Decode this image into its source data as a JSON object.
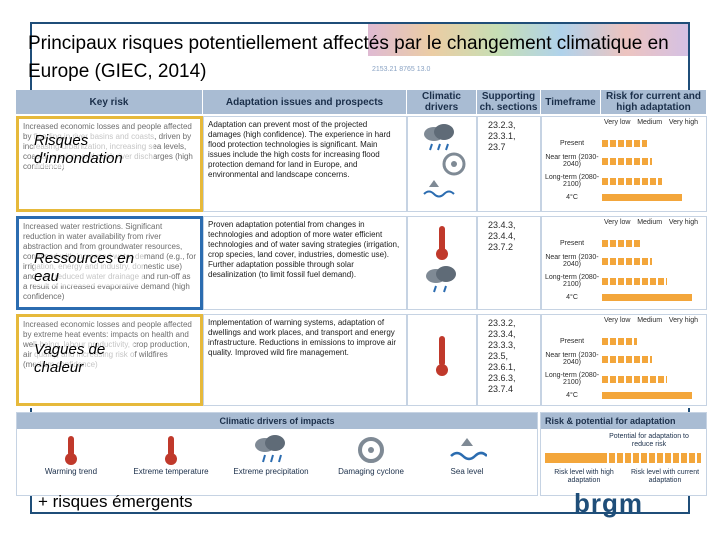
{
  "title": "Principaux risques potentiellement affectés par le changement climatique en Europe (GIEC, 2014)",
  "map_caption": "2153.21 8765 13.0",
  "headers": {
    "key_risk": "Key risk",
    "adaptation": "Adaptation issues and prospects",
    "drivers": "Climatic drivers",
    "sections": "Supporting ch. sections",
    "timeframe": "Timeframe",
    "risk_level": "Risk for current and high adaptation"
  },
  "scale": {
    "low": "Very low",
    "medium": "Medium",
    "high": "Very high"
  },
  "timeframes": {
    "present": "Present",
    "near": "Near term (2030-2040)",
    "long": "Long-term (2080-2100)",
    "deg2": "2°C",
    "deg4": "4°C"
  },
  "rows": [
    {
      "label": "Risques d'innondation",
      "key_risk_text": "Increased economic losses and people affected by flooding in river basins and coasts, driven by increasing urbanization, increasing sea levels, coastal erosion, and peak river discharges (high confidence)",
      "adaptation": "Adaptation can prevent most of the projected damages (high confidence). The experience in hard flood protection technologies is significant. Main issues include the high costs for increasing flood protection demand for land in Europe, and environmental and landscape concerns.",
      "sections": [
        "23.2.3,",
        "23.3.1,",
        "23.7"
      ],
      "drivers": [
        "rain-cloud-icon",
        "cyclone-icon",
        "sea-level-icon"
      ],
      "levels": {
        "present": 0.45,
        "near": 0.5,
        "long2": 0.6,
        "long4": 0.8
      }
    },
    {
      "label": "Ressources en eau",
      "key_risk_text": "Increased water restrictions. Significant reduction in water availability from river abstraction and from groundwater resources, combined with increased water demand (e.g., for irrigation, energy and industry, domestic use) and with reduced water drainage and run-off as a result of increased evaporative demand (high confidence)",
      "adaptation": "Proven adaptation potential from changes in technologies and adoption of more water efficient technologies and of water saving strategies (irrigation, crop species, land cover, industries, domestic use). Further adaptation possible through solar desalinization (to limit fossil fuel demand).",
      "sections": [
        "23.4.3,",
        "23.4.4,",
        "23.7.2"
      ],
      "drivers": [
        "thermometer-icon",
        "drought-icon"
      ],
      "levels": {
        "present": 0.4,
        "near": 0.5,
        "long2": 0.65,
        "long4": 0.9
      }
    },
    {
      "label": "Vagues de chaleur",
      "key_risk_text": "Increased economic losses and people affected by extreme heat events: impacts on health and well-being, labour productivity, crop production, air quality, and increasing risk of wildfires (medium confidence)",
      "adaptation": "Implementation of warning systems, adaptation of dwellings and work places, and transport and energy infrastructure. Reductions in emissions to improve air quality. Improved wild fire management.",
      "sections": [
        "23.3.2,",
        "23.3.4,",
        "23.3.3,",
        "23.5, 23.6.1,",
        "23.6.3,",
        "23.7.4"
      ],
      "drivers": [
        "thermometer-icon"
      ],
      "levels": {
        "present": 0.35,
        "near": 0.5,
        "long2": 0.65,
        "long4": 0.9
      }
    }
  ],
  "drivers_panel": {
    "title": "Climatic drivers of impacts",
    "items": [
      {
        "label": "Warming trend",
        "icon": "warming-trend-icon"
      },
      {
        "label": "Extreme temperature",
        "icon": "extreme-temperature-icon"
      },
      {
        "label": "Extreme precipitation",
        "icon": "extreme-precipitation-icon"
      },
      {
        "label": "Damaging cyclone",
        "icon": "damaging-cyclone-icon"
      },
      {
        "label": "Sea level",
        "icon": "sea-level-icon"
      }
    ]
  },
  "risk_panel": {
    "title": "Risk & potential for adaptation",
    "potential": "Potential for adaptation to reduce risk",
    "with_high": "Risk level with high adaptation",
    "with_current": "Risk level with current adaptation"
  },
  "footer_left": "+ risques émergents",
  "logo": "brgm",
  "colors": {
    "header": "#a9bcd3",
    "bar": "#f3a63b",
    "border_gold": "#e6b93b",
    "border_blue": "#2b6cb0",
    "frame": "#1f4e79"
  }
}
